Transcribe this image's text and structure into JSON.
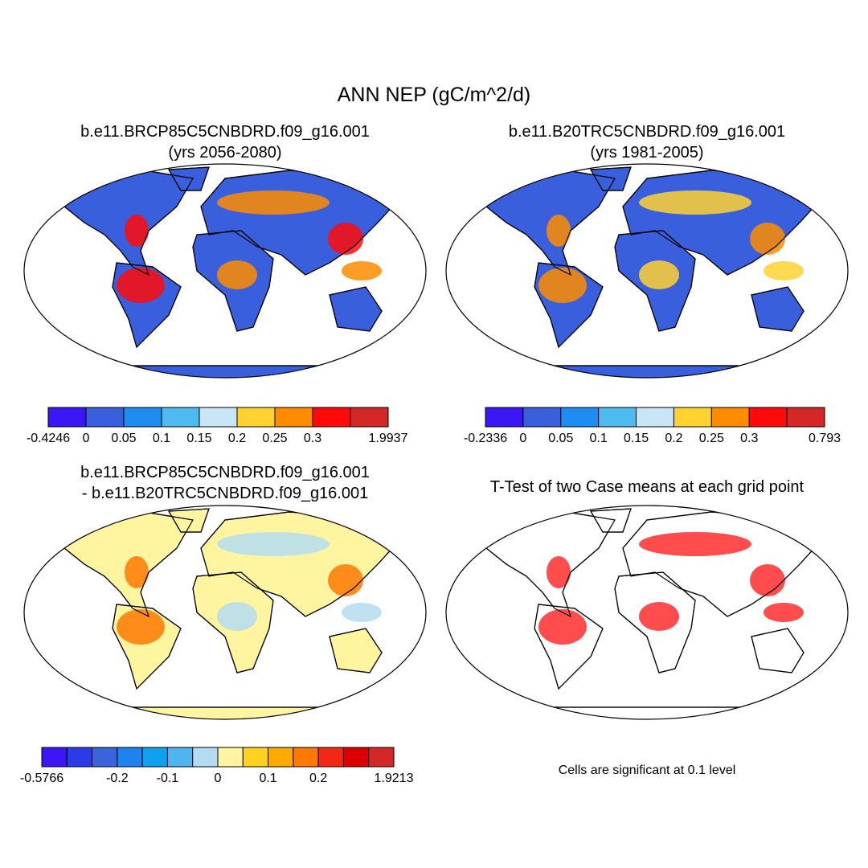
{
  "title": "ANN NEP (gC/m^2/d)",
  "panels": [
    {
      "title": [
        "b.e11.BRCP85C5CNBDRD.f09_g16.001",
        "(yrs 2056-2080)"
      ],
      "colorbar": {
        "colors": [
          "#3c16f5",
          "#3a5fdc",
          "#1e8cf0",
          "#4fbaf0",
          "#c8e6f5",
          "#ffd232",
          "#ff8c00",
          "#ff0a0a",
          "#d22828"
        ],
        "labels": [
          "-0.4246",
          "0",
          "0.05",
          "0.1",
          "0.15",
          "0.2",
          "0.25",
          "0.3",
          null,
          "1.9937"
        ]
      }
    },
    {
      "title": [
        "b.e11.B20TRC5CNBDRD.f09_g16.001",
        "(yrs 1981-2005)"
      ],
      "colorbar": {
        "colors": [
          "#3c16f5",
          "#3a5fdc",
          "#1e8cf0",
          "#4fbaf0",
          "#c8e6f5",
          "#ffd232",
          "#ff8c00",
          "#ff0a0a",
          "#d22828"
        ],
        "labels": [
          "-0.2336",
          "0",
          "0.05",
          "0.1",
          "0.15",
          "0.2",
          "0.25",
          "0.3",
          null,
          "0.793"
        ]
      }
    },
    {
      "title": [
        "b.e11.BRCP85C5CNBDRD.f09_g16.001",
        "- b.e11.B20TRC5CNBDRD.f09_g16.001"
      ],
      "colorbar": {
        "colors": [
          "#3c16f5",
          "#2a3ce6",
          "#3a64dc",
          "#1e82f0",
          "#10a0f0",
          "#50b4f0",
          "#b4dcf0",
          "#fff5a0",
          "#ffd21e",
          "#ffaa00",
          "#ff7800",
          "#f02814",
          "#dc0000",
          "#d22828"
        ],
        "labels": [
          "-0.5766",
          null,
          null,
          "-0.2",
          null,
          "-0.1",
          null,
          "0",
          null,
          "0.1",
          null,
          "0.2",
          null,
          null,
          "1.9213"
        ]
      }
    },
    {
      "title": [
        "T-Test of two Case means at each grid point"
      ],
      "note": "Cells are significant at 0.1 level"
    }
  ]
}
